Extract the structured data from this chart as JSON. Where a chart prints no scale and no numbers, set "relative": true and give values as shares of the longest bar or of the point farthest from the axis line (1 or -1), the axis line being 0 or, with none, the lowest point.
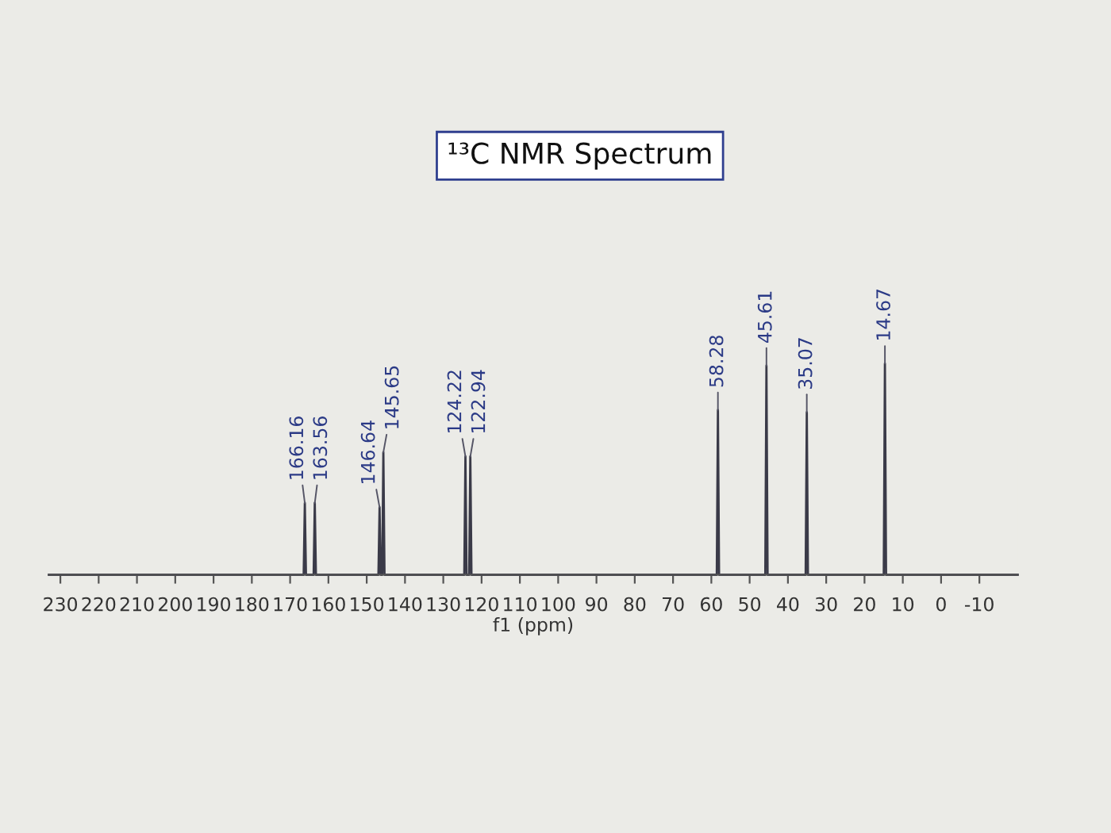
{
  "chart_data": {
    "type": "line",
    "title": "¹³C NMR Spectrum",
    "xlabel": "f1 (ppm)",
    "relative": true,
    "xlim": [
      233,
      -20
    ],
    "xticks": [
      230,
      220,
      210,
      200,
      190,
      180,
      170,
      160,
      150,
      140,
      130,
      120,
      110,
      100,
      90,
      80,
      70,
      60,
      50,
      40,
      30,
      20,
      10,
      0,
      -10
    ],
    "series": [
      {
        "color": "#3a3a48",
        "x": [
          233,
          166.46,
          166.16,
          165.86,
          163.86,
          163.56,
          163.26,
          146.94,
          146.64,
          146.34,
          145.95,
          145.65,
          145.35,
          124.52,
          124.22,
          123.92,
          123.24,
          122.94,
          122.64,
          58.58,
          58.28,
          57.98,
          45.91,
          45.61,
          45.31,
          35.37,
          35.07,
          34.77,
          14.97,
          14.67,
          14.37,
          -20
        ],
        "values": [
          0,
          0,
          0.34,
          0,
          0,
          0.34,
          0,
          0,
          0.32,
          0,
          0,
          0.58,
          0,
          0,
          0.56,
          0,
          0,
          0.56,
          0,
          0,
          0.78,
          0,
          0,
          0.99,
          0,
          0,
          0.77,
          0,
          0,
          1.0,
          0,
          0
        ]
      }
    ],
    "annotations": [
      {
        "text": "166.16",
        "x": 166.16,
        "y": 0.34
      },
      {
        "text": "163.56",
        "x": 163.56,
        "y": 0.34
      },
      {
        "text": "146.64",
        "x": 146.64,
        "y": 0.32
      },
      {
        "text": "145.65",
        "x": 145.65,
        "y": 0.58
      },
      {
        "text": "124.22",
        "x": 124.22,
        "y": 0.56
      },
      {
        "text": "122.94",
        "x": 122.94,
        "y": 0.56
      },
      {
        "text": "58.28",
        "x": 58.28,
        "y": 0.78
      },
      {
        "text": "45.61",
        "x": 45.61,
        "y": 0.99
      },
      {
        "text": "35.07",
        "x": 35.07,
        "y": 0.77
      },
      {
        "text": "14.67",
        "x": 14.67,
        "y": 1.0
      }
    ]
  }
}
